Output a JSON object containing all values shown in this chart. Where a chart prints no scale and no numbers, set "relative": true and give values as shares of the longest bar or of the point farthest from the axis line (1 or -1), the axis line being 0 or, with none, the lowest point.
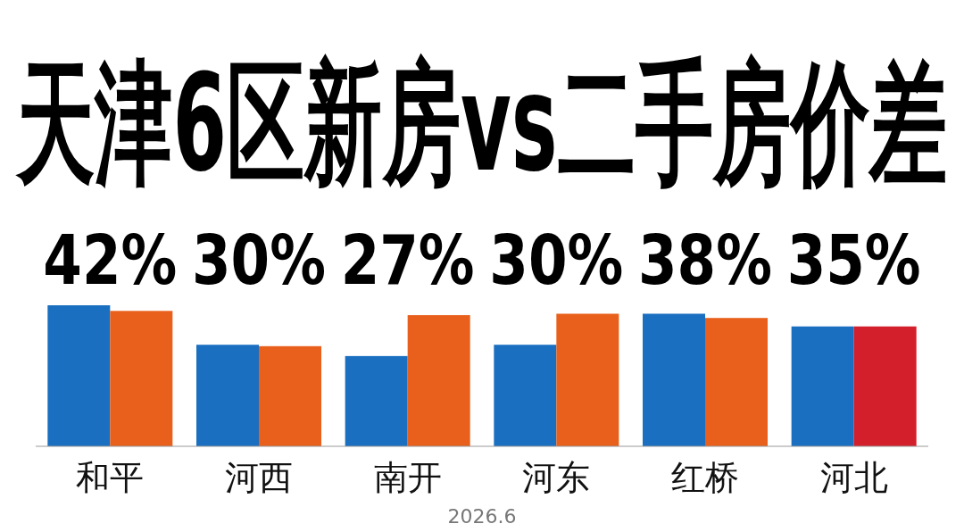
{
  "chart_data": {
    "type": "bar",
    "title": "天津6区新房vs二手房价差",
    "relative": true,
    "categories": [
      "和平",
      "河西",
      "南开",
      "河东",
      "红桥",
      "河北"
    ],
    "series": [
      {
        "color": "#1a6fc0",
        "values": [
          1,
          0.72,
          0.64,
          0.72,
          0.94,
          0.85
        ]
      },
      {
        "colors": [
          "#e8601c",
          "#e8601c",
          "#e8601c",
          "#e8601c",
          "#e8601c",
          "#d21f2b"
        ],
        "values": [
          0.96,
          0.71,
          0.93,
          0.94,
          0.91,
          0.85
        ]
      }
    ],
    "annotations": [
      "42%",
      "30%",
      "27%",
      "30%",
      "38%",
      "35%",
      "2026.6"
    ],
    "stacked": false
  }
}
